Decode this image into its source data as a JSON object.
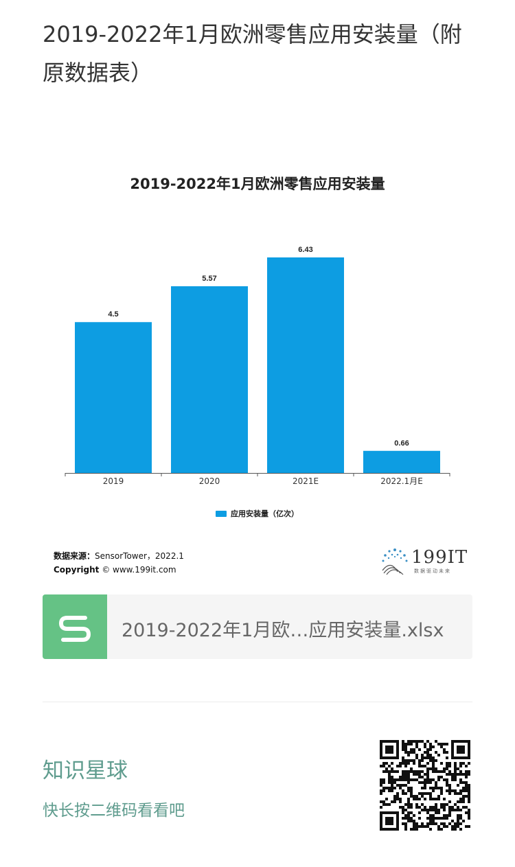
{
  "article": {
    "title": "2019-2022年1月欧洲零售应用安装量（附原数据表）"
  },
  "chart_data": {
    "type": "bar",
    "title": "2019-2022年1月欧洲零售应用安装量",
    "categories": [
      "2019",
      "2020",
      "2021E",
      "2022.1月E"
    ],
    "series": [
      {
        "name": "应用安装量（亿次）",
        "values": [
          4.5,
          5.57,
          6.43,
          0.66
        ],
        "color": "#0d9de2"
      }
    ],
    "data_labels": [
      "4.5",
      "5.57",
      "6.43",
      "0.66"
    ],
    "legend_position": "bottom",
    "grid": false
  },
  "chart_footer": {
    "source_label": "数据来源：",
    "source_value": "SensorTower，2022.1",
    "copyright_label": "Copyright",
    "copyright_symbol": "©",
    "copyright_value": "www.199it.com"
  },
  "logo": {
    "text": "199IT",
    "tagline": "数据驱动未来"
  },
  "attachment": {
    "filename": "2019-2022年1月欧…应用安装量.xlsx",
    "icon": "spreadsheet-icon",
    "icon_color": "#65c285"
  },
  "promo": {
    "title": "知识星球",
    "subtitle": "快长按二维码看看吧",
    "qr_icon": "qr-code-icon",
    "accent": "#5f9c8e"
  }
}
